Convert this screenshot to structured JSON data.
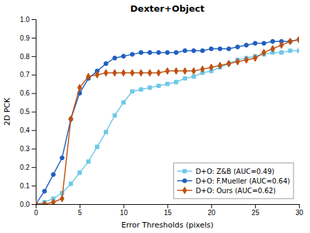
{
  "chart_data": {
    "type": "line",
    "title": "Dexter+Object",
    "xlabel": "Error Thresholds (pixels)",
    "ylabel": "2D PCK",
    "x": [
      0,
      1,
      2,
      3,
      4,
      5,
      6,
      7,
      8,
      9,
      10,
      11,
      12,
      13,
      14,
      15,
      16,
      17,
      18,
      19,
      20,
      21,
      22,
      23,
      24,
      25,
      26,
      27,
      28,
      29,
      30
    ],
    "series": [
      {
        "name": "D+O: Z&B (AUC=0.49)",
        "color": "#70C8E8",
        "marker": "square",
        "values": [
          0.0,
          0.01,
          0.03,
          0.06,
          0.11,
          0.17,
          0.23,
          0.31,
          0.39,
          0.48,
          0.55,
          0.61,
          0.62,
          0.63,
          0.64,
          0.65,
          0.66,
          0.68,
          0.69,
          0.71,
          0.72,
          0.74,
          0.76,
          0.78,
          0.79,
          0.8,
          0.81,
          0.82,
          0.82,
          0.83,
          0.83
        ]
      },
      {
        "name": "D+O: F.Mueller (AUC=0.64)",
        "color": "#2060C0",
        "marker": "circle",
        "values": [
          0.0,
          0.07,
          0.16,
          0.25,
          0.46,
          0.6,
          0.68,
          0.72,
          0.76,
          0.79,
          0.8,
          0.81,
          0.82,
          0.82,
          0.82,
          0.82,
          0.82,
          0.83,
          0.83,
          0.83,
          0.84,
          0.84,
          0.84,
          0.85,
          0.86,
          0.87,
          0.87,
          0.88,
          0.88,
          0.88,
          0.89
        ]
      },
      {
        "name": "D+O: Ours (AUC=0.62)",
        "color": "#C05010",
        "marker": "diamond",
        "values": [
          0.0,
          0.0,
          0.01,
          0.03,
          0.46,
          0.63,
          0.69,
          0.7,
          0.71,
          0.71,
          0.71,
          0.71,
          0.71,
          0.71,
          0.71,
          0.72,
          0.72,
          0.72,
          0.72,
          0.73,
          0.74,
          0.75,
          0.76,
          0.77,
          0.78,
          0.79,
          0.82,
          0.84,
          0.86,
          0.88,
          0.89
        ]
      }
    ],
    "xlim": [
      0,
      30
    ],
    "ylim": [
      0,
      1
    ],
    "xticks": [
      0,
      5,
      10,
      15,
      20,
      25,
      30
    ],
    "yticks": [
      {
        "value": 0,
        "label": "0.0"
      },
      0.1,
      0.2,
      0.3,
      0.4,
      0.5,
      0.6,
      0.7,
      0.8,
      0.9,
      {
        "value": 1,
        "label": "1.0"
      }
    ],
    "legend": "lower right",
    "grid": false
  }
}
